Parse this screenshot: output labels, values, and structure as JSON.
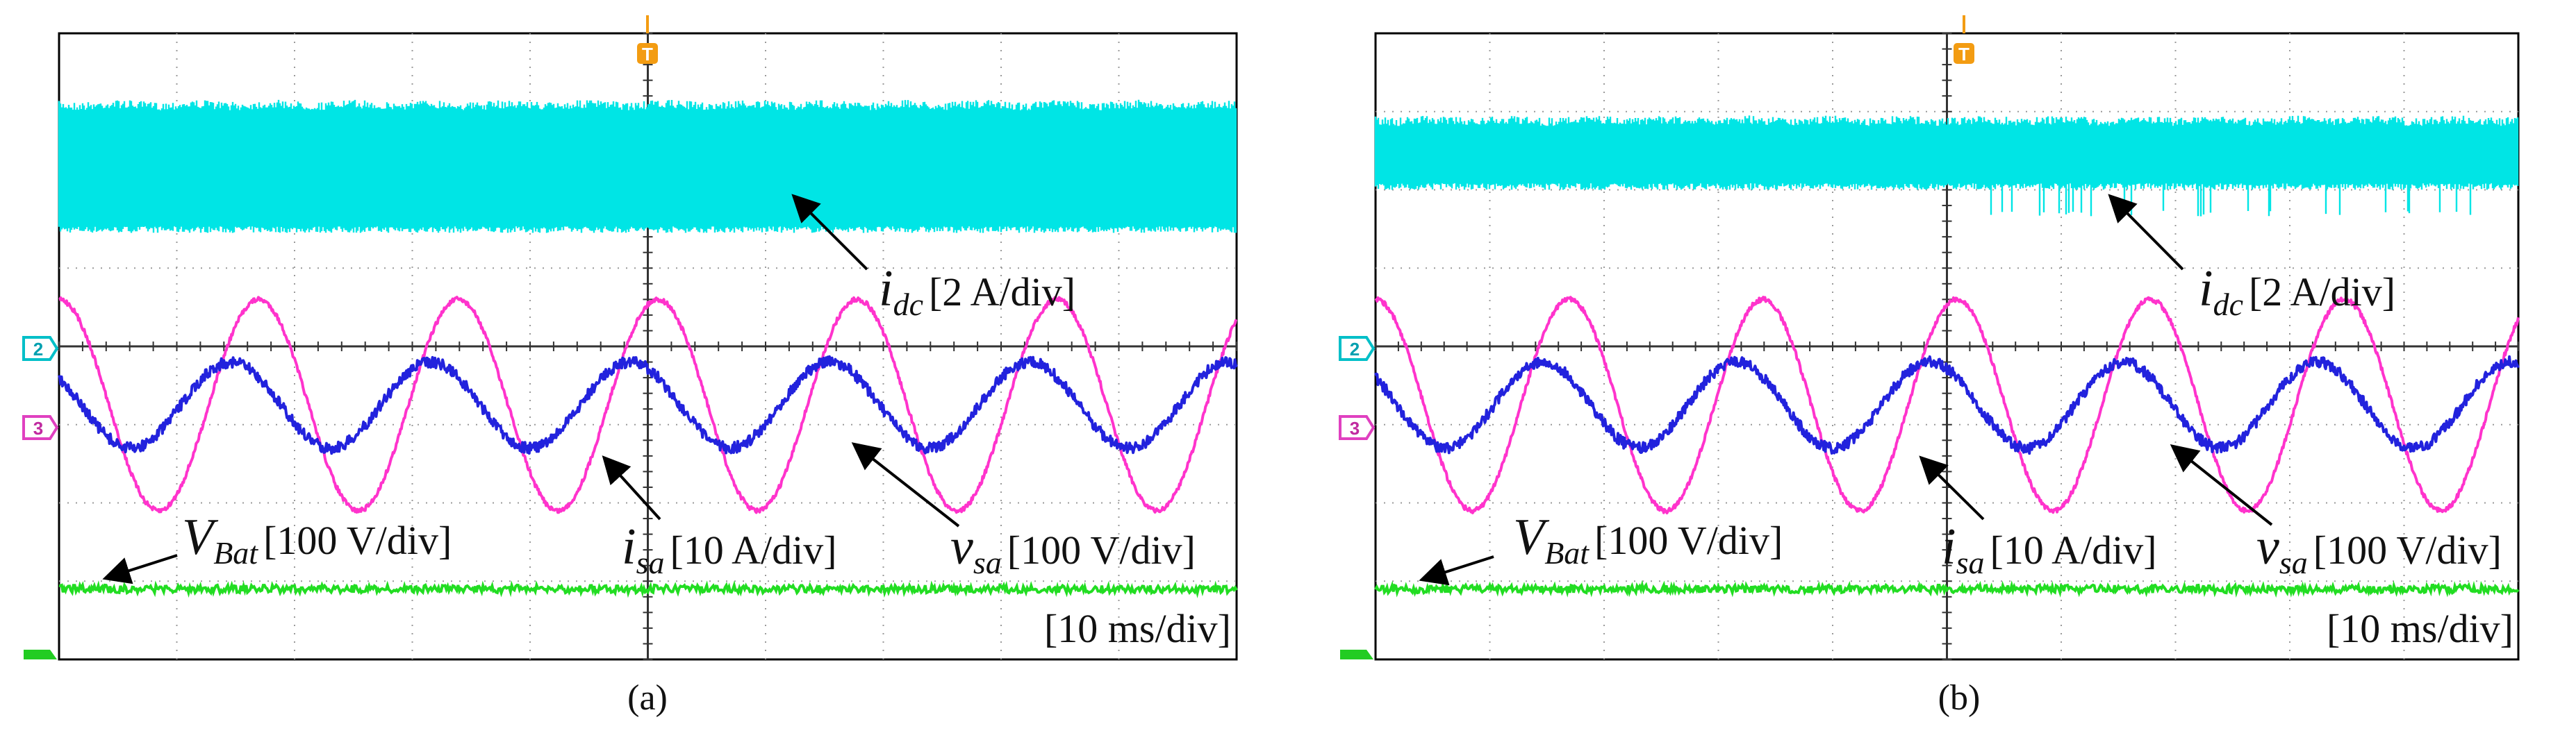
{
  "chart_data": [
    {
      "type": "line",
      "panel": "(a)",
      "time_division": "[10 ms/div]",
      "divisions": {
        "horizontal": 10,
        "vertical": 8
      },
      "trigger_marker": "T",
      "channel_markers": [
        "2",
        "3"
      ],
      "series": [
        {
          "name": "i_dc",
          "symbol": "i",
          "subscript": "dc",
          "scale": "[2 A/div]",
          "color": "#00E5E5",
          "kind": "ripple_band",
          "band_top_div": 0.85,
          "band_bottom_div": 2.55,
          "notches": false
        },
        {
          "name": "v_sa",
          "symbol": "v",
          "subscript": "sa",
          "scale": "[100 V/div]",
          "color": "#FF33CC",
          "kind": "sine",
          "center_div": 4.75,
          "amplitude_div": 1.35,
          "cycles": 5.9,
          "phase_deg": 90,
          "noise_div": 0.03
        },
        {
          "name": "i_sa",
          "symbol": "i",
          "subscript": "sa",
          "scale": "[10 A/div]",
          "color": "#2222DD",
          "kind": "sine",
          "center_div": 4.75,
          "amplitude_div": 0.55,
          "cycles": 5.9,
          "phase_deg": 140,
          "noise_div": 0.07
        },
        {
          "name": "V_Bat",
          "symbol": "V",
          "subscript": "Bat",
          "scale": "[100 V/div]",
          "color": "#22DD22",
          "kind": "flat",
          "level_div": 7.1,
          "noise_div": 0.05
        }
      ]
    },
    {
      "type": "line",
      "panel": "(b)",
      "time_division": "[10 ms/div]",
      "divisions": {
        "horizontal": 10,
        "vertical": 8
      },
      "trigger_marker": "T",
      "channel_markers": [
        "2",
        "3"
      ],
      "series": [
        {
          "name": "i_dc",
          "symbol": "i",
          "subscript": "dc",
          "scale": "[2 A/div]",
          "color": "#00E5E5",
          "kind": "ripple_band",
          "band_top_div": 1.05,
          "band_bottom_div": 2.0,
          "notches": true
        },
        {
          "name": "v_sa",
          "symbol": "v",
          "subscript": "sa",
          "scale": "[100 V/div]",
          "color": "#FF33CC",
          "kind": "sine",
          "center_div": 4.75,
          "amplitude_div": 1.35,
          "cycles": 5.9,
          "phase_deg": 90,
          "noise_div": 0.03
        },
        {
          "name": "i_sa",
          "symbol": "i",
          "subscript": "sa",
          "scale": "[10 A/div]",
          "color": "#2222DD",
          "kind": "sine",
          "center_div": 4.75,
          "amplitude_div": 0.55,
          "cycles": 5.9,
          "phase_deg": 140,
          "noise_div": 0.07
        },
        {
          "name": "V_Bat",
          "symbol": "V",
          "subscript": "Bat",
          "scale": "[100 V/div]",
          "color": "#22DD22",
          "kind": "flat",
          "level_div": 7.1,
          "noise_div": 0.05
        }
      ]
    }
  ],
  "labels": {
    "idc": {
      "sym": "i",
      "sub": "dc",
      "scale": "[2 A/div]"
    },
    "vbat": {
      "sym": "V",
      "sub": "Bat",
      "scale": "[100 V/div]"
    },
    "isa": {
      "sym": "i",
      "sub": "sa",
      "scale": "[10 A/div]"
    },
    "vsa": {
      "sym": "v",
      "sub": "sa",
      "scale": "[100 V/div]"
    },
    "time": "[10 ms/div]",
    "trigger": "T",
    "ch2": "2",
    "ch3": "3"
  },
  "captions": {
    "a": "(a)",
    "b": "(b)"
  }
}
